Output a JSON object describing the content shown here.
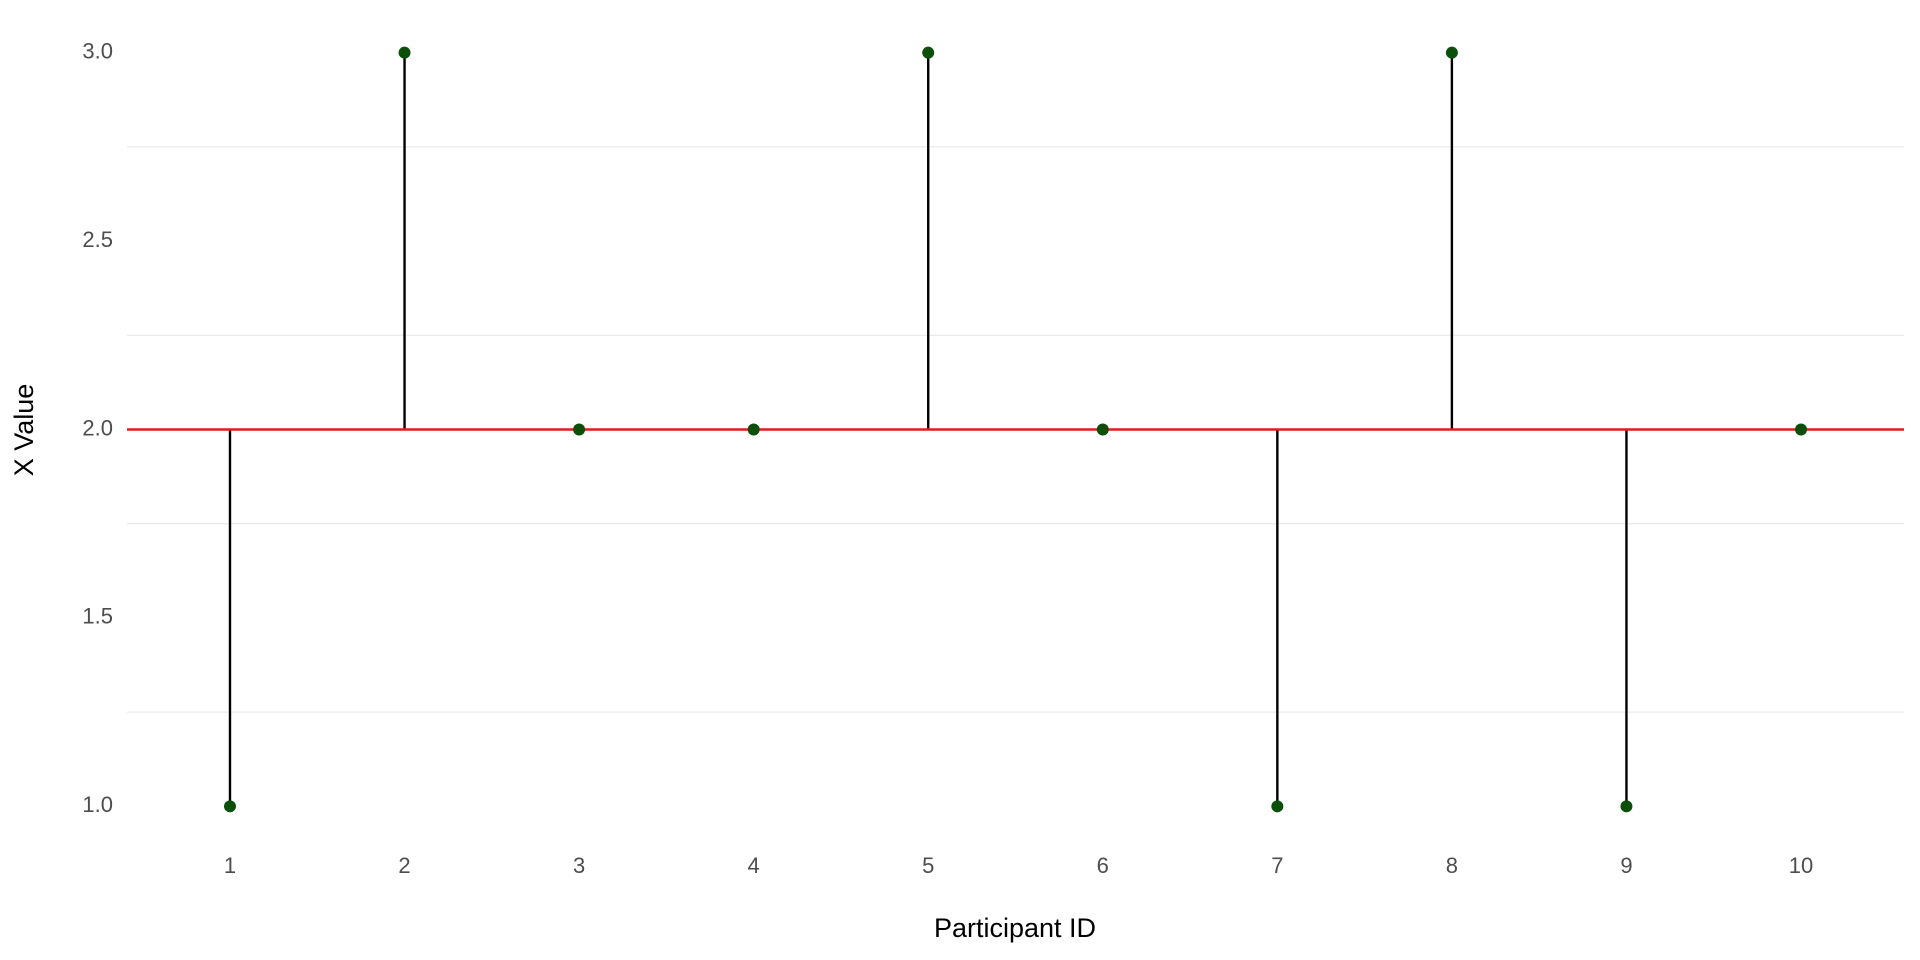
{
  "chart_data": {
    "type": "lollipop",
    "x_label": "Participant ID",
    "y_label": "X Value",
    "x": [
      1,
      2,
      3,
      4,
      5,
      6,
      7,
      8,
      9,
      10
    ],
    "values": [
      1,
      3,
      2,
      2,
      3,
      2,
      1,
      3,
      1,
      2
    ],
    "baseline": 2,
    "baseline_color": "#e31a1c",
    "stem_color": "#000000",
    "color": "#0b4f0b",
    "xlim": [
      0.41,
      10.59
    ],
    "xticks": [
      1,
      2,
      3,
      4,
      5,
      6,
      7,
      8,
      9,
      10
    ],
    "ylim": [
      0.9,
      3.1
    ],
    "yticks": [
      {
        "value": 1,
        "label": "1.0"
      },
      1.5,
      {
        "value": 2,
        "label": "2.0"
      },
      2.5,
      {
        "value": 3,
        "label": "3.0"
      }
    ],
    "y_minor_grid": [
      1.25,
      1.75,
      2.25,
      2.75
    ]
  }
}
